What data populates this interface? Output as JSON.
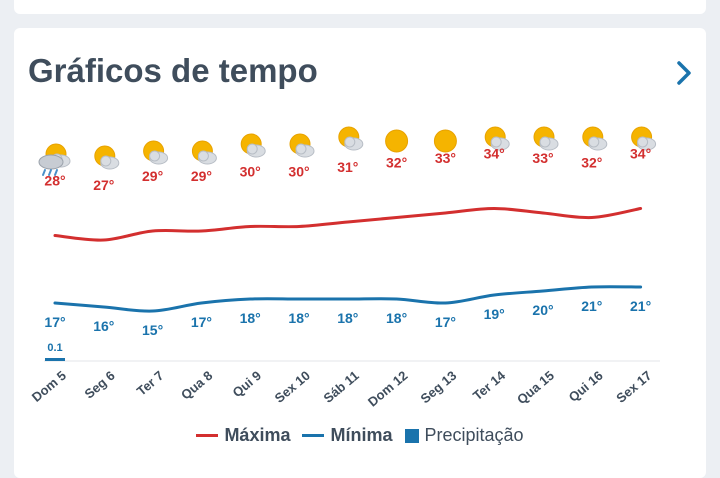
{
  "card": {
    "title": "Gráficos de tempo"
  },
  "legend": {
    "max_label": "Máxima",
    "min_label": "Mínima",
    "precip_label": "Precipitação"
  },
  "colors": {
    "max": "#d32f2f",
    "min": "#1a73ac",
    "precip": "#1a73ac",
    "text": "#3f4d5c",
    "sun": "#f5b400",
    "cloud": "#d9dde2"
  },
  "chart_data": {
    "type": "line",
    "categories": [
      "Dom 5",
      "Seg 6",
      "Ter 7",
      "Qua 8",
      "Qui 9",
      "Sex 10",
      "Sáb 11",
      "Dom 12",
      "Seg 13",
      "Ter 14",
      "Qua 15",
      "Qui 16",
      "Sex 17"
    ],
    "icons": [
      "sun-cloud-rain",
      "sun-cloud",
      "sun-cloud",
      "sun-cloud",
      "sun-cloud",
      "sun-cloud",
      "sun-cloud",
      "sun",
      "sun",
      "sun-cloud",
      "sun-cloud",
      "sun-cloud",
      "sun-cloud"
    ],
    "series": [
      {
        "name": "Máxima",
        "values": [
          28,
          27,
          29,
          29,
          30,
          30,
          31,
          32,
          33,
          34,
          33,
          32,
          34
        ],
        "labels": [
          "28°",
          "27°",
          "29°",
          "29°",
          "30°",
          "30°",
          "31°",
          "32°",
          "33°",
          "34°",
          "33°",
          "32°",
          "34°"
        ]
      },
      {
        "name": "Mínima",
        "values": [
          17,
          16,
          15,
          17,
          18,
          18,
          18,
          18,
          17,
          19,
          20,
          21,
          21
        ],
        "labels": [
          "17°",
          "16°",
          "15°",
          "17°",
          "18°",
          "18°",
          "18°",
          "18°",
          "17°",
          "19°",
          "20°",
          "21°",
          "21°"
        ]
      },
      {
        "name": "Precipitação",
        "values": [
          0.1,
          0,
          0,
          0,
          0,
          0,
          0,
          0,
          0,
          0,
          0,
          0,
          0
        ],
        "labels": [
          "0.1",
          "",
          "",
          "",
          "",
          "",
          "",
          "",
          "",
          "",
          "",
          "",
          ""
        ]
      }
    ],
    "grid": false,
    "legend_position": "bottom"
  }
}
